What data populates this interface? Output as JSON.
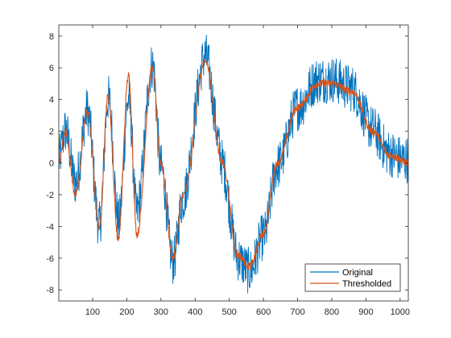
{
  "chart_data": {
    "type": "line",
    "title": "",
    "xlabel": "",
    "ylabel": "",
    "xlim": [
      1,
      1024
    ],
    "ylim": [
      -8.7,
      8.7
    ],
    "xticks": [
      100,
      200,
      300,
      400,
      500,
      600,
      700,
      800,
      900,
      1000
    ],
    "yticks": [
      -8,
      -6,
      -4,
      -2,
      0,
      2,
      4,
      6,
      8
    ],
    "grid": false,
    "legend_position": "bottom-right",
    "signal_model": "doppler-like chirp: amplitude grows with x, oscillation frequency decreases with x",
    "series": [
      {
        "name": "Original",
        "color": "#0072BD",
        "description": "noisy signal, noise amplitude about ±1.5",
        "x": [
          1,
          40,
          80,
          120,
          160,
          200,
          240,
          280,
          300,
          340,
          360,
          400,
          430,
          460,
          500,
          540,
          560,
          600,
          650,
          700,
          750,
          800,
          850,
          900,
          950,
          1000,
          1024
        ],
        "y": [
          1.5,
          3.2,
          4.0,
          -3.5,
          6.0,
          -4.8,
          6.5,
          7.0,
          -2.0,
          -7.5,
          -4.0,
          5.5,
          8.7,
          4.0,
          -4.0,
          -8.0,
          -8.7,
          -5.5,
          -1.0,
          3.5,
          6.5,
          6.8,
          6.0,
          3.5,
          1.5,
          0.5,
          1.5
        ]
      },
      {
        "name": "Thresholded",
        "color": "#D95319",
        "description": "denoised signal",
        "x": [
          1,
          20,
          50,
          85,
          120,
          145,
          175,
          205,
          230,
          275,
          300,
          335,
          365,
          430,
          480,
          525,
          560,
          600,
          640,
          700,
          760,
          800,
          860,
          920,
          970,
          1024
        ],
        "y": [
          0,
          2.0,
          -2.0,
          3.2,
          -4.0,
          4.2,
          -4.8,
          5.5,
          -4.5,
          6.0,
          0.0,
          -6.0,
          -2.0,
          6.4,
          0.0,
          -5.8,
          -6.5,
          -4.5,
          0.0,
          3.5,
          5.0,
          5.0,
          4.5,
          2.0,
          0.5,
          0.0
        ]
      }
    ]
  }
}
